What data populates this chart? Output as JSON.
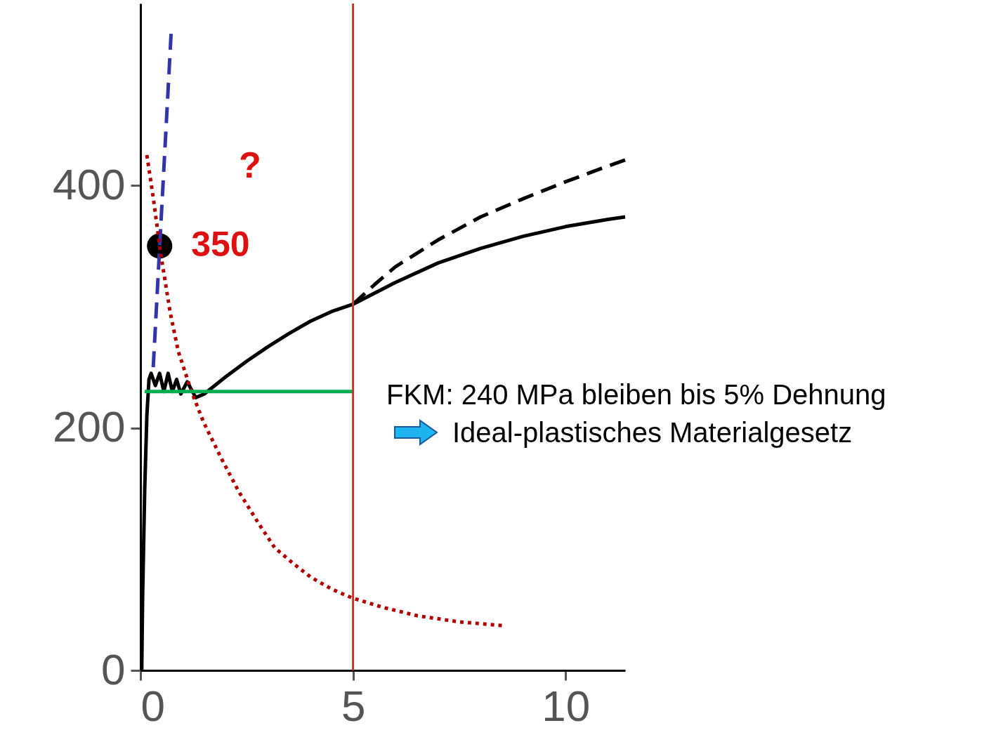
{
  "chart_data": {
    "type": "line",
    "xlim": [
      0,
      11.4
    ],
    "ylim": [
      0,
      550
    ],
    "xticks": [
      0,
      5,
      10
    ],
    "yticks": [
      0,
      200,
      400
    ],
    "grid": false,
    "series": [
      {
        "color": "#000000",
        "line_style": "solid",
        "x": [
          0.03,
          0.05,
          0.1,
          0.15,
          0.2,
          0.25,
          0.35,
          0.45,
          0.55,
          0.65,
          0.75,
          0.85,
          0.95,
          1.1,
          1.3,
          1.5,
          2,
          2.5,
          3,
          3.5,
          4,
          4.5,
          5,
          6,
          7,
          8,
          9,
          10,
          11,
          11.4
        ],
        "values": [
          0,
          60,
          150,
          210,
          240,
          245,
          235,
          245,
          230,
          245,
          230,
          240,
          228,
          238,
          225,
          228,
          242,
          255,
          267,
          278,
          288,
          296,
          302,
          320,
          336,
          348,
          358,
          366,
          372,
          374
        ]
      },
      {
        "color": "#000000",
        "line_style": "dashed",
        "x": [
          5,
          5.5,
          6,
          7,
          8,
          9,
          10,
          11,
          11.4
        ],
        "values": [
          302,
          318,
          333,
          355,
          374,
          389,
          403,
          416,
          421
        ]
      },
      {
        "color": "#3333aa",
        "line_style": "dashed",
        "x": [
          0.72,
          0.3
        ],
        "values": [
          525,
          250
        ]
      },
      {
        "color": "#b00000",
        "line_style": "dotted",
        "x": [
          0.15,
          0.3,
          0.47,
          0.7,
          0.89,
          1.2,
          1.48,
          1.9,
          2.32,
          2.8,
          3.16,
          3.6,
          4.0,
          4.5,
          4.96,
          5.7,
          6.52,
          7.5,
          8.5
        ],
        "values": [
          425,
          390,
          345,
          295,
          263,
          230,
          205,
          175,
          147,
          120,
          101,
          88,
          77,
          67,
          60,
          52,
          45,
          40,
          37
        ]
      },
      {
        "color": "#00b050",
        "line_style": "solid",
        "x": [
          0.1,
          5
        ],
        "values": [
          230,
          230
        ]
      },
      {
        "type": "scatter",
        "color": "#000000",
        "x": [
          0.45
        ],
        "values": [
          350
        ],
        "value_labels": [
          "350"
        ]
      }
    ],
    "ref_lines": [
      {
        "axis": "x",
        "value": 5,
        "color": "#c0392b"
      }
    ],
    "annotations": [
      "?",
      "FKM: 240 MPa bleiben bis 5% Dehnung",
      "Ideal-plastisches Materialgesetz"
    ]
  }
}
